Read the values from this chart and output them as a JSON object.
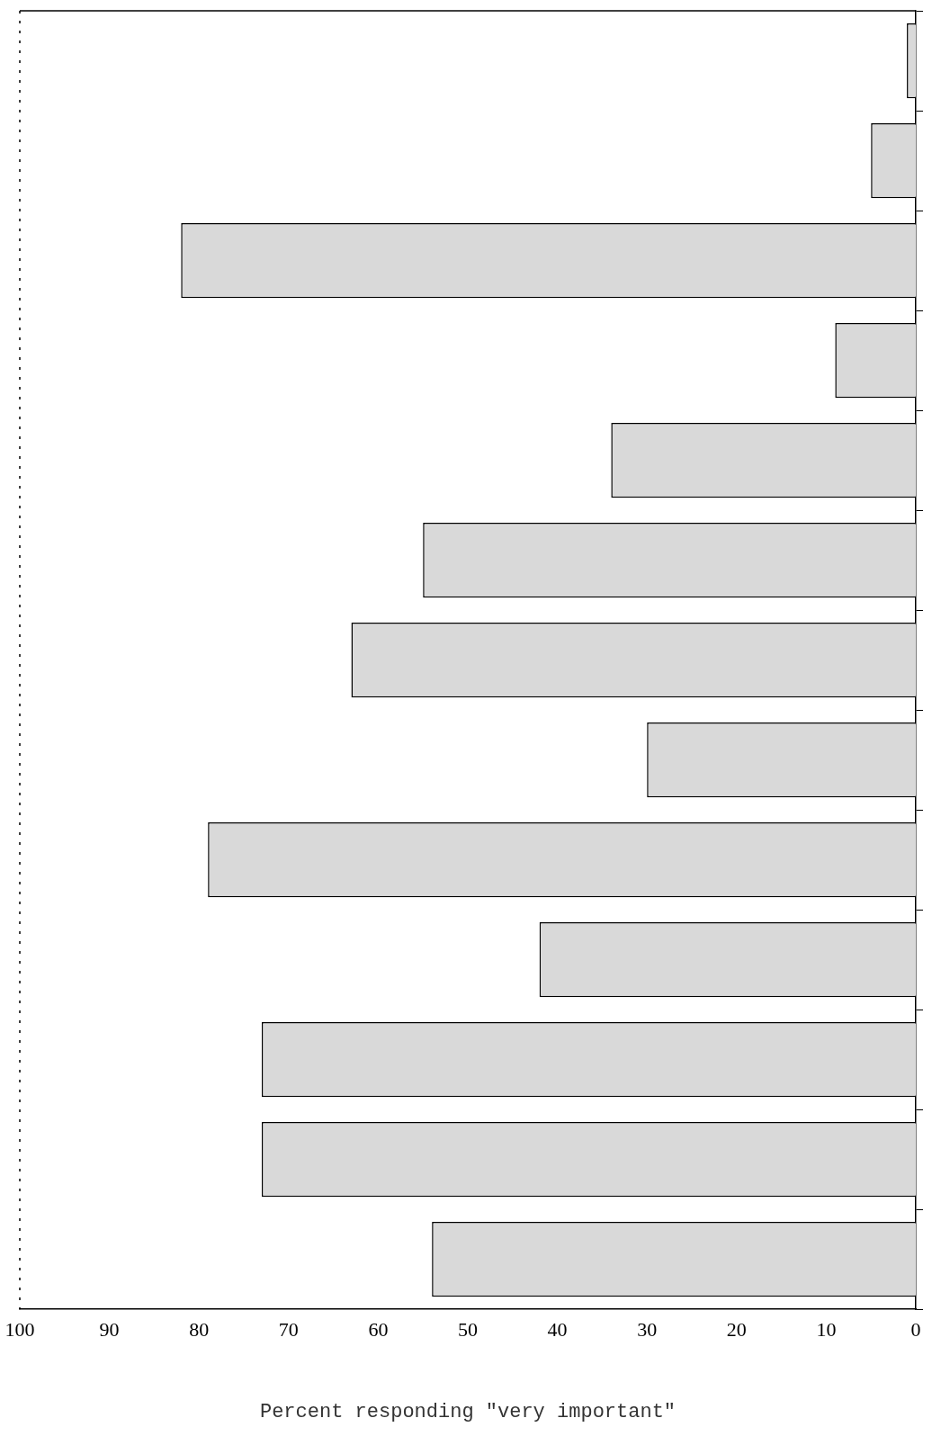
{
  "chart_data": {
    "type": "bar",
    "orientation": "horizontal",
    "xlabel": "Percent responding \"very important\"",
    "categories": [
      null,
      null,
      null,
      null,
      null,
      null,
      null,
      null,
      null,
      null,
      null,
      null,
      null
    ],
    "values": [
      1,
      5,
      82,
      9,
      34,
      55,
      63,
      30,
      79,
      42,
      73,
      73,
      54
    ],
    "color": "#d9d9d9",
    "xlim": [
      100,
      0
    ],
    "xticks": [
      100,
      90,
      80,
      70,
      60,
      50,
      40,
      30,
      20,
      10,
      0
    ],
    "grid": false
  }
}
